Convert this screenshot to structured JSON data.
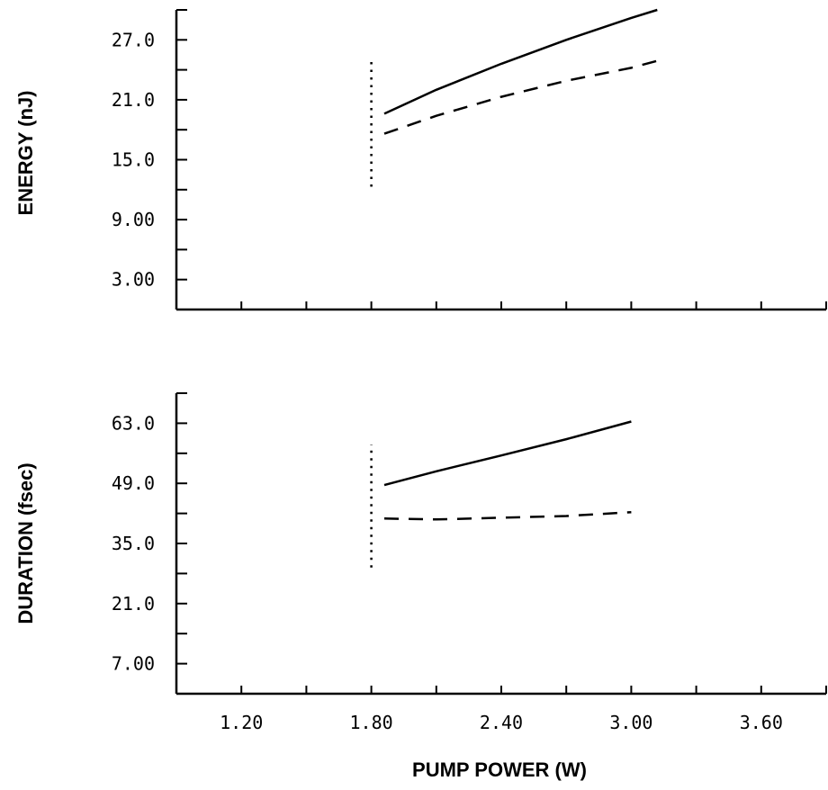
{
  "chart_data": [
    {
      "type": "line",
      "title": "",
      "ylabel": "ENERGY (nJ)",
      "xlabel": "",
      "xlim": [
        0.9,
        3.9
      ],
      "ylim": [
        0,
        30
      ],
      "yticks": [
        3.0,
        6.0,
        9.0,
        12.0,
        15.0,
        18.0,
        21.0,
        24.0,
        27.0,
        30.0
      ],
      "ytick_labels": [
        "3.00",
        "9.00",
        "15.0",
        "21.0",
        "27.0"
      ],
      "ytick_label_values": [
        3.0,
        9.0,
        15.0,
        21.0,
        27.0
      ],
      "xticks": [
        0.9,
        1.2,
        1.5,
        1.8,
        2.1,
        2.4,
        2.7,
        3.0,
        3.3,
        3.6,
        3.9
      ],
      "series": [
        {
          "style": "solid",
          "x": [
            1.86,
            2.1,
            2.4,
            2.7,
            3.0,
            3.12,
            3.12
          ],
          "y": [
            19.6,
            22.0,
            24.6,
            27.0,
            29.2,
            30.0,
            30.0
          ]
        },
        {
          "style": "dashed",
          "x": [
            1.86,
            2.1,
            2.4,
            2.7,
            3.0,
            3.12
          ],
          "y": [
            17.6,
            19.4,
            21.3,
            22.9,
            24.2,
            24.9
          ]
        },
        {
          "style": "dotted",
          "x": [
            1.8,
            1.8
          ],
          "y": [
            12.3,
            25.0
          ]
        }
      ]
    },
    {
      "type": "line",
      "title": "",
      "ylabel": "DURATION (fsec)",
      "xlabel": "PUMP POWER (W)",
      "xlim": [
        0.9,
        3.9
      ],
      "ylim": [
        0,
        70
      ],
      "yticks": [
        7.0,
        14.0,
        21.0,
        28.0,
        35.0,
        42.0,
        49.0,
        56.0,
        63.0,
        70.0
      ],
      "ytick_labels": [
        "7.00",
        "21.0",
        "35.0",
        "49.0",
        "63.0"
      ],
      "ytick_label_values": [
        7.0,
        21.0,
        35.0,
        49.0,
        63.0
      ],
      "xticks": [
        0.9,
        1.2,
        1.5,
        1.8,
        2.1,
        2.4,
        2.7,
        3.0,
        3.3,
        3.6,
        3.9
      ],
      "xtick_labels": [
        "1.20",
        "1.80",
        "2.40",
        "3.00",
        "3.60"
      ],
      "xtick_label_values": [
        1.2,
        1.8,
        2.4,
        3.0,
        3.6
      ],
      "series": [
        {
          "style": "solid",
          "x": [
            1.86,
            2.1,
            2.4,
            2.7,
            3.0
          ],
          "y": [
            48.6,
            51.8,
            55.5,
            59.3,
            63.4
          ]
        },
        {
          "style": "dashed",
          "x": [
            1.86,
            2.1,
            2.4,
            2.7,
            3.0
          ],
          "y": [
            40.8,
            40.6,
            41.0,
            41.4,
            42.3
          ]
        },
        {
          "style": "dotted",
          "x": [
            1.8,
            1.8
          ],
          "y": [
            29.4,
            58.0
          ]
        }
      ]
    }
  ]
}
